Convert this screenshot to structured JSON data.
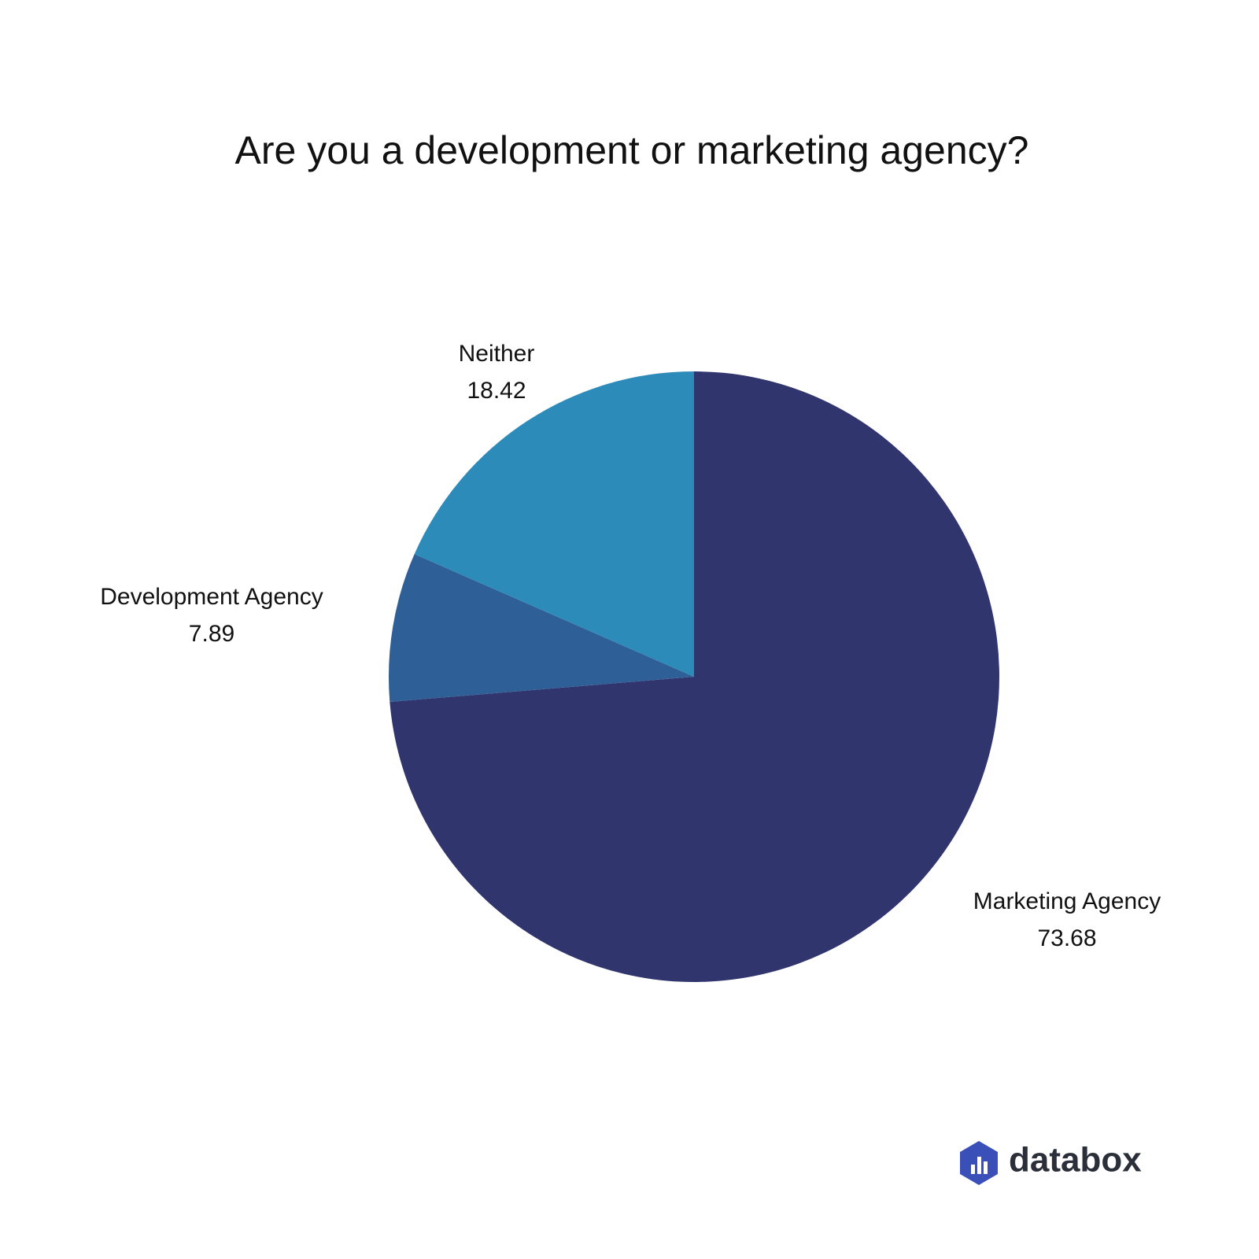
{
  "chart_data": {
    "type": "pie",
    "title": "Are you a development or marketing agency?",
    "categories": [
      "Marketing Agency",
      "Development Agency",
      "Neither"
    ],
    "values": [
      73.68,
      7.89,
      18.42
    ],
    "colors": [
      "#31356e",
      "#2e5f96",
      "#2d8bba"
    ]
  },
  "logo": {
    "text": "databox"
  }
}
